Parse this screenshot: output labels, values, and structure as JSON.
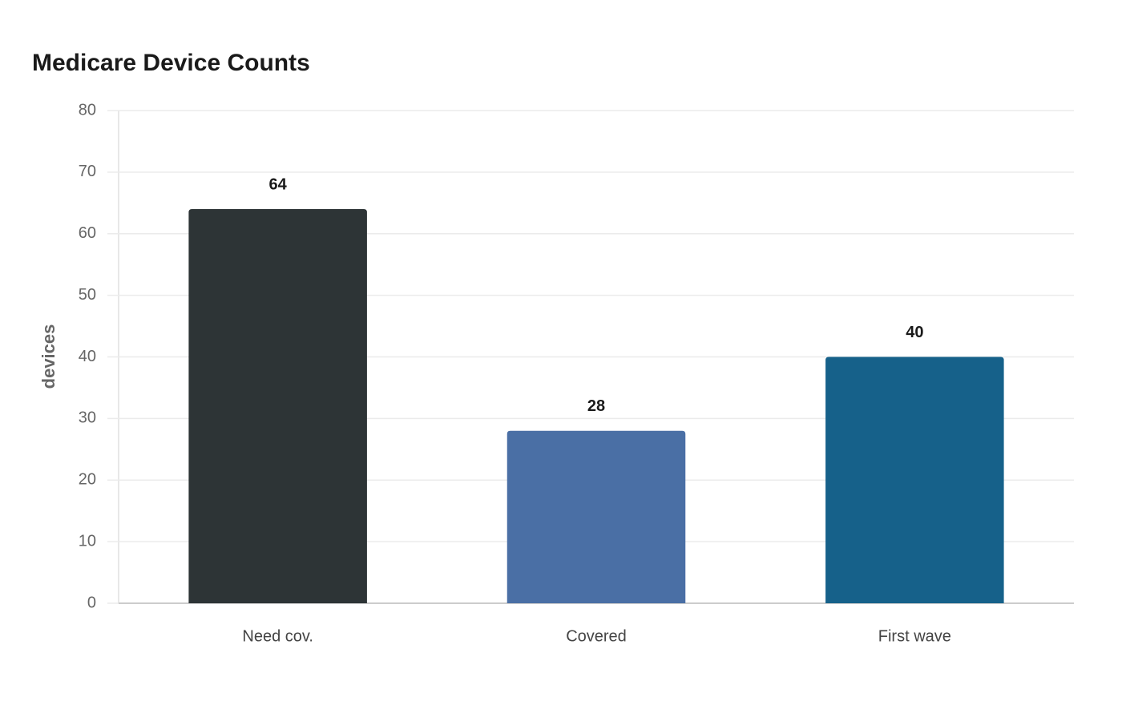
{
  "chart_data": {
    "type": "bar",
    "title": "Medicare Device Counts",
    "y_label": "devices",
    "categories": [
      "Need cov.",
      "Covered",
      "First wave"
    ],
    "values": [
      64,
      28,
      40
    ],
    "colors": [
      "#2d3436",
      "#4a6fa5",
      "#16618a"
    ],
    "ylim": [
      0,
      80
    ],
    "yticks": [
      0,
      10,
      20,
      30,
      40,
      50,
      60,
      70,
      80
    ],
    "grid": true
  }
}
